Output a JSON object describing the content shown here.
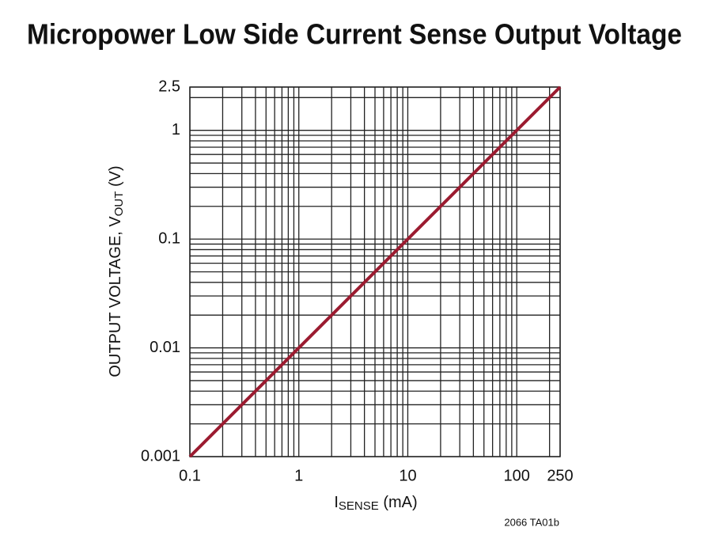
{
  "chart_data": {
    "type": "line",
    "title": "Micropower Low Side Current Sense Output Voltage",
    "x_label": [
      "I",
      "SENSE",
      " (mA)"
    ],
    "y_label": [
      "OUTPUT VOLTAGE, V",
      "OUT",
      " (V)"
    ],
    "footnote": "2066 TA01b",
    "log_x": true,
    "log_y": true,
    "grid": true,
    "x": [
      0.1,
      250
    ],
    "series": [
      {
        "color": "#9b1b30",
        "values": [
          0.001,
          2.5
        ]
      }
    ],
    "xlim": [
      0.1,
      250
    ],
    "ylim": [
      0.001,
      2.5
    ],
    "xticks": [
      0.1,
      1,
      10,
      100,
      250
    ],
    "yticks": [
      0.001,
      0.01,
      0.1,
      1,
      2.5
    ],
    "xminorticks": [
      0.2,
      0.3,
      0.4,
      0.5,
      0.6,
      0.7,
      0.8,
      0.9,
      2,
      3,
      4,
      5,
      6,
      7,
      8,
      9,
      20,
      30,
      40,
      50,
      60,
      70,
      80,
      90,
      200
    ],
    "yminorticks": [
      0.002,
      0.003,
      0.004,
      0.005,
      0.006,
      0.007,
      0.008,
      0.009,
      0.02,
      0.03,
      0.04,
      0.05,
      0.06,
      0.07,
      0.08,
      0.09,
      0.2,
      0.3,
      0.4,
      0.5,
      0.6,
      0.7,
      0.8,
      0.9,
      2
    ]
  }
}
